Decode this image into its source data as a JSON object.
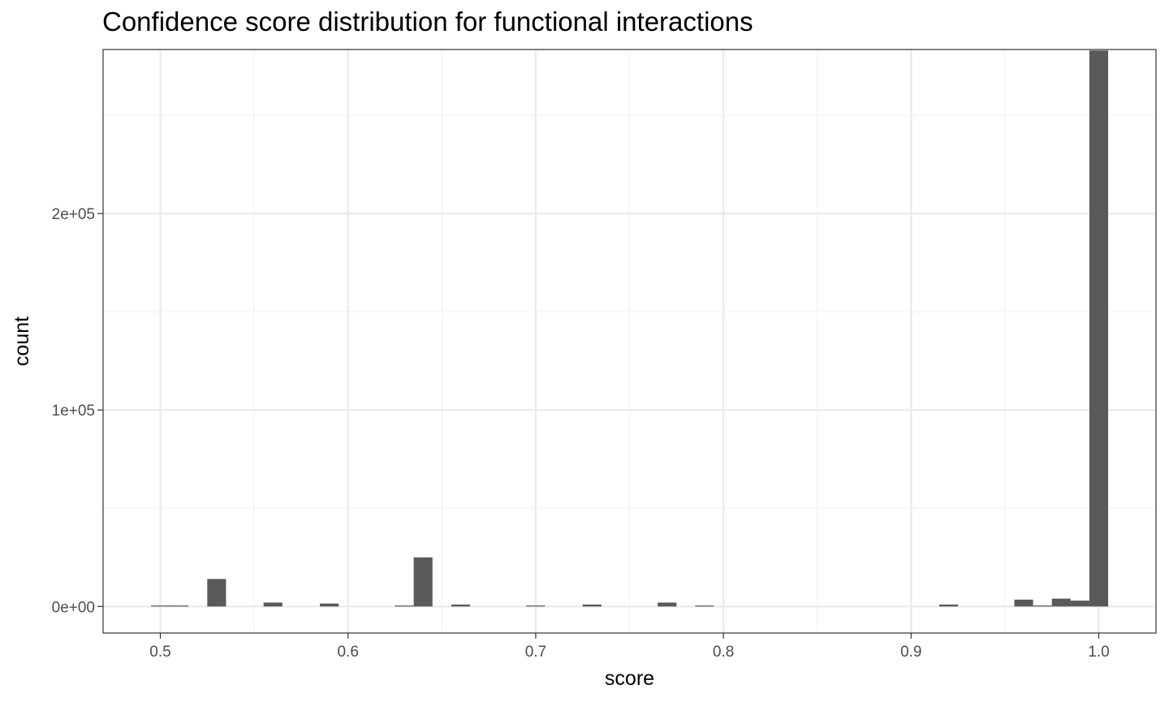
{
  "chart_data": {
    "type": "bar",
    "title": "Confidence score distribution for functional interactions",
    "xlabel": "score",
    "ylabel": "count",
    "xlim": [
      0.4695,
      1.0305
    ],
    "ylim": [
      -13500,
      283500
    ],
    "x_ticks": [
      0.5,
      0.6,
      0.7,
      0.8,
      0.9,
      1.0
    ],
    "x_tick_labels": [
      "0.5",
      "0.6",
      "0.7",
      "0.8",
      "0.9",
      "1.0"
    ],
    "y_ticks": [
      0,
      100000,
      200000
    ],
    "y_tick_labels": [
      "0e+00",
      "1e+05",
      "2e+05"
    ],
    "bin_width": 0.01,
    "bins": [
      {
        "x": 0.5,
        "count": 300
      },
      {
        "x": 0.51,
        "count": 300
      },
      {
        "x": 0.53,
        "count": 14000
      },
      {
        "x": 0.56,
        "count": 2000
      },
      {
        "x": 0.59,
        "count": 1500
      },
      {
        "x": 0.63,
        "count": 300
      },
      {
        "x": 0.64,
        "count": 25000
      },
      {
        "x": 0.66,
        "count": 1000
      },
      {
        "x": 0.7,
        "count": 300
      },
      {
        "x": 0.73,
        "count": 1000
      },
      {
        "x": 0.77,
        "count": 2000
      },
      {
        "x": 0.79,
        "count": 300
      },
      {
        "x": 0.92,
        "count": 1000
      },
      {
        "x": 0.96,
        "count": 3500
      },
      {
        "x": 0.97,
        "count": 500
      },
      {
        "x": 0.98,
        "count": 4000
      },
      {
        "x": 0.99,
        "count": 3000
      },
      {
        "x": 1.0,
        "count": 283000
      }
    ],
    "grid": true,
    "colors": {
      "bar": "#595959",
      "panel_border": "#333333",
      "grid_major": "#ebebeb",
      "grid_minor": "#f2f2f2",
      "tick_text": "#4d4d4d"
    }
  }
}
